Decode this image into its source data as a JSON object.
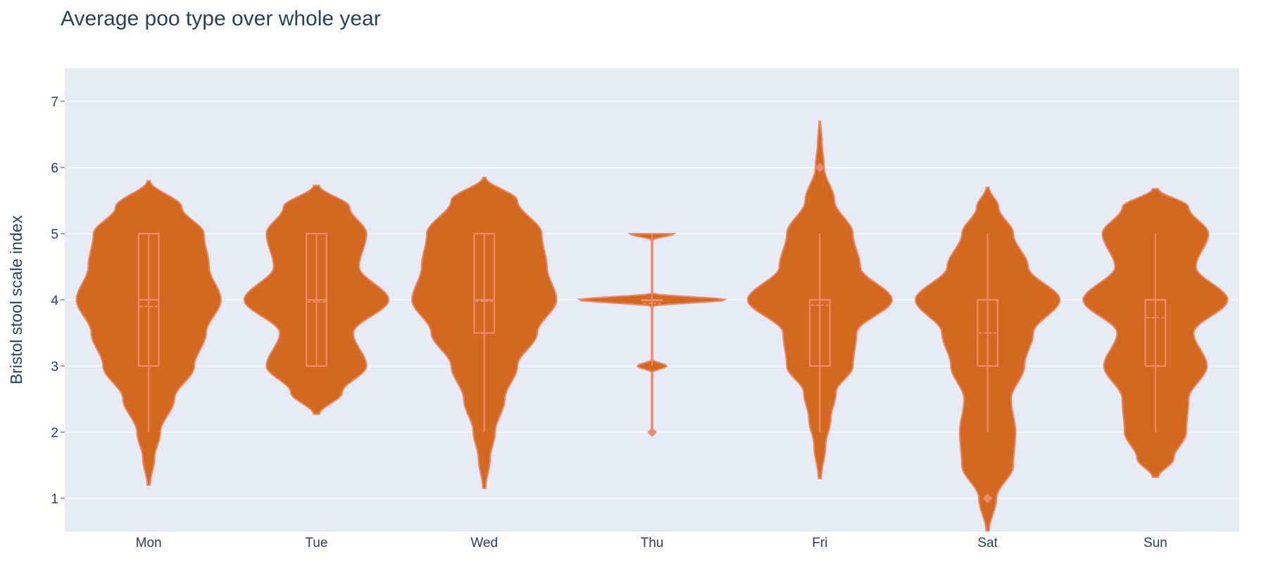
{
  "chart_data": {
    "type": "violin",
    "title": "Average poo type over whole year",
    "xlabel": "",
    "ylabel": "Bristol stool scale index",
    "ylim": [
      0.5,
      7.5
    ],
    "yticks": [
      1,
      2,
      3,
      4,
      5,
      6,
      7
    ],
    "grid": true,
    "legend": "none",
    "colors": {
      "fill": "#d2691e",
      "line": "#f08a6c",
      "plot_bg": "#e5ecf6",
      "grid": "#ffffff",
      "text": "#2a3f5f"
    },
    "categories": [
      "Mon",
      "Tue",
      "Wed",
      "Thu",
      "Fri",
      "Sat",
      "Sun"
    ],
    "series": [
      {
        "category": "Mon",
        "min": 2,
        "q1": 3,
        "median": 4,
        "q3": 5,
        "max": 5,
        "mean": 3.9,
        "span": [
          1.2,
          5.8
        ],
        "outliers": [],
        "density": [
          [
            1.2,
            0.02
          ],
          [
            1.6,
            0.08
          ],
          [
            2.0,
            0.16
          ],
          [
            2.5,
            0.35
          ],
          [
            3.0,
            0.62
          ],
          [
            3.5,
            0.78
          ],
          [
            4.0,
            0.98
          ],
          [
            4.5,
            0.82
          ],
          [
            5.0,
            0.75
          ],
          [
            5.4,
            0.45
          ],
          [
            5.8,
            0.02
          ]
        ]
      },
      {
        "category": "Tue",
        "min": 3,
        "q1": 3,
        "median": 4,
        "q3": 5,
        "max": 5,
        "mean": 3.97,
        "span": [
          2.27,
          5.73
        ],
        "outliers": [],
        "density": [
          [
            2.27,
            0.04
          ],
          [
            2.6,
            0.35
          ],
          [
            3.0,
            0.68
          ],
          [
            3.5,
            0.5
          ],
          [
            4.0,
            0.98
          ],
          [
            4.5,
            0.58
          ],
          [
            5.0,
            0.68
          ],
          [
            5.4,
            0.45
          ],
          [
            5.73,
            0.04
          ]
        ]
      },
      {
        "category": "Wed",
        "min": 2,
        "q1": 3.5,
        "median": 4,
        "q3": 5,
        "max": 5,
        "mean": 3.98,
        "span": [
          1.15,
          5.85
        ],
        "outliers": [],
        "density": [
          [
            1.15,
            0.02
          ],
          [
            1.6,
            0.08
          ],
          [
            2.0,
            0.15
          ],
          [
            2.5,
            0.28
          ],
          [
            3.0,
            0.45
          ],
          [
            3.5,
            0.72
          ],
          [
            4.0,
            0.98
          ],
          [
            4.5,
            0.85
          ],
          [
            5.0,
            0.78
          ],
          [
            5.5,
            0.45
          ],
          [
            5.85,
            0.02
          ]
        ]
      },
      {
        "category": "Thu",
        "min": 3,
        "q1": 4,
        "median": 4,
        "q3": 4,
        "max": 5,
        "mean": 3.95,
        "span": [
          2,
          5
        ],
        "outliers": [
          2
        ],
        "density": [
          [
            2.0,
            0.0
          ],
          [
            2.9,
            0.0
          ],
          [
            3.0,
            0.2
          ],
          [
            3.1,
            0.0
          ],
          [
            3.9,
            0.0
          ],
          [
            4.0,
            1.0
          ],
          [
            4.1,
            0.0
          ],
          [
            4.9,
            0.0
          ],
          [
            5.0,
            0.3
          ],
          [
            5.05,
            0.0
          ]
        ]
      },
      {
        "category": "Fri",
        "min": 2,
        "q1": 3,
        "median": 4,
        "q3": 4,
        "max": 5,
        "mean": 3.92,
        "span": [
          1.3,
          6.7
        ],
        "outliers": [
          6
        ],
        "density": [
          [
            1.3,
            0.02
          ],
          [
            1.8,
            0.08
          ],
          [
            2.2,
            0.15
          ],
          [
            2.6,
            0.22
          ],
          [
            3.0,
            0.45
          ],
          [
            3.5,
            0.5
          ],
          [
            4.0,
            0.98
          ],
          [
            4.5,
            0.55
          ],
          [
            5.0,
            0.45
          ],
          [
            5.5,
            0.2
          ],
          [
            6.0,
            0.06
          ],
          [
            6.4,
            0.03
          ],
          [
            6.7,
            0.01
          ]
        ]
      },
      {
        "category": "Sat",
        "min": 2,
        "q1": 3,
        "median": 4,
        "q3": 4,
        "max": 5,
        "mean": 3.5,
        "span": [
          0.5,
          5.7
        ],
        "outliers": [
          1
        ],
        "density": [
          [
            0.5,
            0.02
          ],
          [
            1.0,
            0.12
          ],
          [
            1.5,
            0.35
          ],
          [
            2.0,
            0.38
          ],
          [
            2.5,
            0.32
          ],
          [
            3.0,
            0.5
          ],
          [
            3.5,
            0.62
          ],
          [
            4.0,
            0.98
          ],
          [
            4.5,
            0.55
          ],
          [
            5.0,
            0.35
          ],
          [
            5.4,
            0.15
          ],
          [
            5.7,
            0.02
          ]
        ]
      },
      {
        "category": "Sun",
        "min": 2,
        "q1": 3,
        "median": 4,
        "q3": 4,
        "max": 5,
        "mean": 3.73,
        "span": [
          1.32,
          5.68
        ],
        "outliers": [],
        "density": [
          [
            1.32,
            0.04
          ],
          [
            1.6,
            0.25
          ],
          [
            2.0,
            0.42
          ],
          [
            2.5,
            0.45
          ],
          [
            3.0,
            0.7
          ],
          [
            3.5,
            0.52
          ],
          [
            4.0,
            0.98
          ],
          [
            4.5,
            0.55
          ],
          [
            5.0,
            0.72
          ],
          [
            5.4,
            0.45
          ],
          [
            5.68,
            0.04
          ]
        ]
      }
    ]
  }
}
